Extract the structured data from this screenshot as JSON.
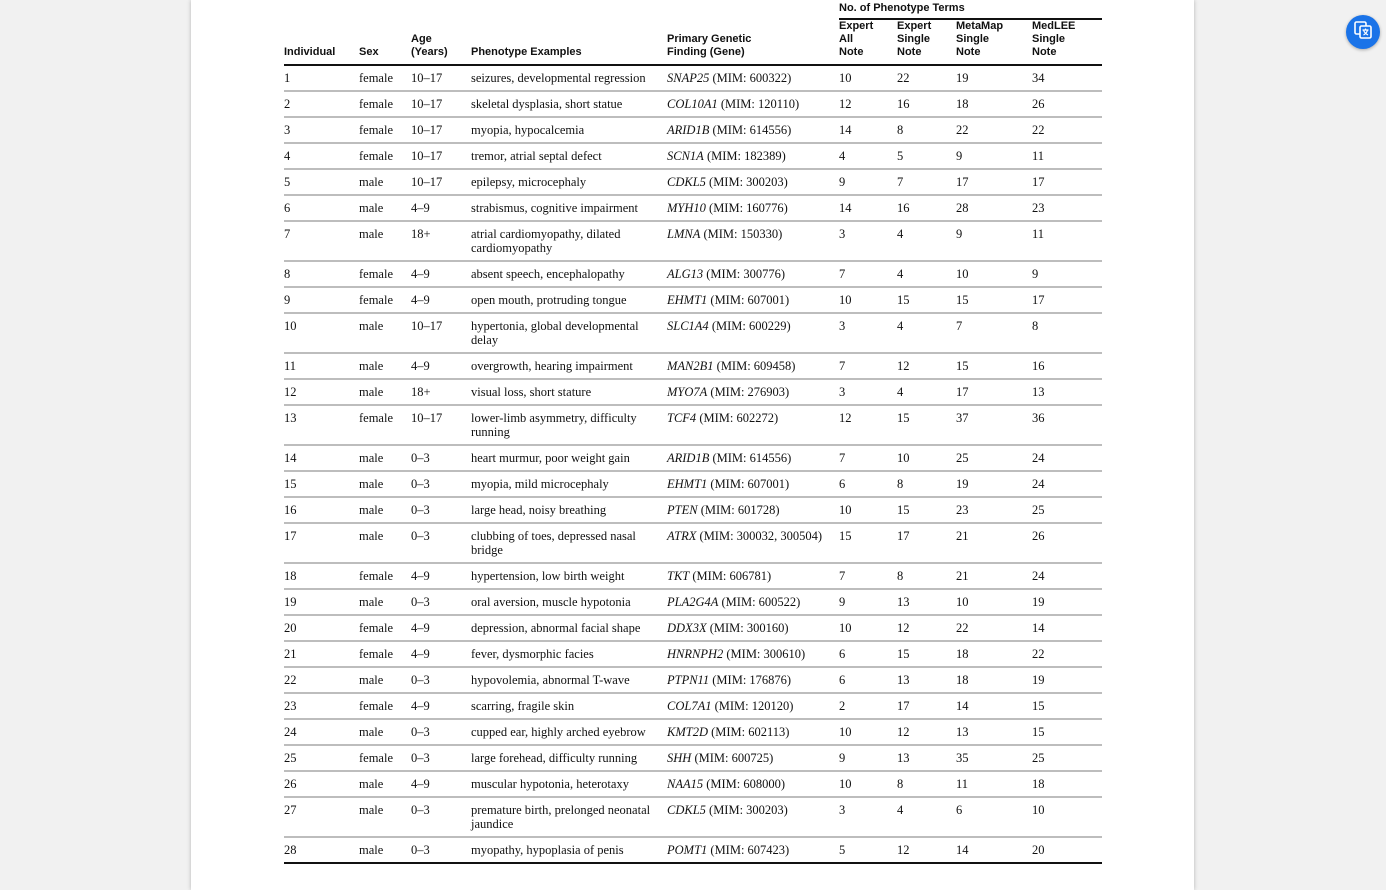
{
  "table": {
    "group_header": "No. of Phenotype Terms",
    "columns": {
      "individual": "Individual",
      "sex": "Sex",
      "age_1": "Age",
      "age_2": "(Years)",
      "phenotype": "Phenotype Examples",
      "finding_1": "Primary Genetic",
      "finding_2": "Finding (Gene)",
      "expert_all_1": "Expert",
      "expert_all_2": "All",
      "expert_all_3": "Note",
      "expert_single_1": "Expert",
      "expert_single_2": "Single",
      "expert_single_3": "Note",
      "metamap_1": "MetaMap",
      "metamap_2": "Single",
      "metamap_3": "Note",
      "medlee_1": "MedLEE",
      "medlee_2": "Single",
      "medlee_3": "Note"
    },
    "rows": [
      {
        "id": "1",
        "sex": "female",
        "age": "10–17",
        "phenotype": "seizures, developmental regression",
        "gene": "SNAP25",
        "mim": " (MIM: 600322)",
        "ea": "10",
        "es": "22",
        "mm": "19",
        "ml": "34"
      },
      {
        "id": "2",
        "sex": "female",
        "age": "10–17",
        "phenotype": "skeletal dysplasia, short statue",
        "gene": "COL10A1",
        "mim": " (MIM: 120110)",
        "ea": "12",
        "es": "16",
        "mm": "18",
        "ml": "26"
      },
      {
        "id": "3",
        "sex": "female",
        "age": "10–17",
        "phenotype": "myopia, hypocalcemia",
        "gene": "ARID1B",
        "mim": " (MIM: 614556)",
        "ea": "14",
        "es": "8",
        "mm": "22",
        "ml": "22"
      },
      {
        "id": "4",
        "sex": "female",
        "age": "10–17",
        "phenotype": "tremor, atrial septal defect",
        "gene": "SCN1A",
        "mim": " (MIM: 182389)",
        "ea": "4",
        "es": "5",
        "mm": "9",
        "ml": "11"
      },
      {
        "id": "5",
        "sex": "male",
        "age": "10–17",
        "phenotype": "epilepsy, microcephaly",
        "gene": "CDKL5",
        "mim": " (MIM: 300203)",
        "ea": "9",
        "es": "7",
        "mm": "17",
        "ml": "17"
      },
      {
        "id": "6",
        "sex": "male",
        "age": "4–9",
        "phenotype": "strabismus, cognitive impairment",
        "gene": "MYH10",
        "mim": " (MIM: 160776)",
        "ea": "14",
        "es": "16",
        "mm": "28",
        "ml": "23"
      },
      {
        "id": "7",
        "sex": "male",
        "age": "18+",
        "phenotype": "atrial cardiomyopathy, dilated cardiomyopathy",
        "gene": "LMNA",
        "mim": " (MIM: 150330)",
        "ea": "3",
        "es": "4",
        "mm": "9",
        "ml": "11"
      },
      {
        "id": "8",
        "sex": "female",
        "age": "4–9",
        "phenotype": "absent speech, encephalopathy",
        "gene": "ALG13",
        "mim": " (MIM: 300776)",
        "ea": "7",
        "es": "4",
        "mm": "10",
        "ml": "9"
      },
      {
        "id": "9",
        "sex": "female",
        "age": "4–9",
        "phenotype": "open mouth, protruding tongue",
        "gene": "EHMT1",
        "mim": " (MIM: 607001)",
        "ea": "10",
        "es": "15",
        "mm": "15",
        "ml": "17"
      },
      {
        "id": "10",
        "sex": "male",
        "age": "10–17",
        "phenotype": "hypertonia, global developmental delay",
        "gene": "SLC1A4",
        "mim": " (MIM: 600229)",
        "ea": "3",
        "es": "4",
        "mm": "7",
        "ml": "8"
      },
      {
        "id": "11",
        "sex": "male",
        "age": "4–9",
        "phenotype": "overgrowth, hearing impairment",
        "gene": "MAN2B1",
        "mim": " (MIM: 609458)",
        "ea": "7",
        "es": "12",
        "mm": "15",
        "ml": "16"
      },
      {
        "id": "12",
        "sex": "male",
        "age": "18+",
        "phenotype": "visual loss, short stature",
        "gene": "MYO7A",
        "mim": " (MIM: 276903)",
        "ea": "3",
        "es": "4",
        "mm": "17",
        "ml": "13"
      },
      {
        "id": "13",
        "sex": "female",
        "age": "10–17",
        "phenotype": "lower-limb asymmetry, difficulty running",
        "gene": "TCF4",
        "mim": " (MIM: 602272)",
        "ea": "12",
        "es": "15",
        "mm": "37",
        "ml": "36"
      },
      {
        "id": "14",
        "sex": "male",
        "age": "0–3",
        "phenotype": "heart murmur, poor weight gain",
        "gene": "ARID1B",
        "mim": " (MIM: 614556)",
        "ea": "7",
        "es": "10",
        "mm": "25",
        "ml": "24"
      },
      {
        "id": "15",
        "sex": "male",
        "age": "0–3",
        "phenotype": "myopia, mild microcephaly",
        "gene": "EHMT1",
        "mim": " (MIM: 607001)",
        "ea": "6",
        "es": "8",
        "mm": "19",
        "ml": "24"
      },
      {
        "id": "16",
        "sex": "male",
        "age": "0–3",
        "phenotype": "large head, noisy breathing",
        "gene": "PTEN",
        "mim": " (MIM: 601728)",
        "ea": "10",
        "es": "15",
        "mm": "23",
        "ml": "25"
      },
      {
        "id": "17",
        "sex": "male",
        "age": "0–3",
        "phenotype": "clubbing of toes, depressed nasal bridge",
        "gene": "ATRX",
        "mim": " (MIM: 300032, 300504)",
        "ea": "15",
        "es": "17",
        "mm": "21",
        "ml": "26"
      },
      {
        "id": "18",
        "sex": "female",
        "age": "4–9",
        "phenotype": "hypertension, low birth weight",
        "gene": "TKT",
        "mim": " (MIM: 606781)",
        "ea": "7",
        "es": "8",
        "mm": "21",
        "ml": "24"
      },
      {
        "id": "19",
        "sex": "male",
        "age": "0–3",
        "phenotype": "oral aversion, muscle hypotonia",
        "gene": "PLA2G4A",
        "mim": " (MIM: 600522)",
        "ea": "9",
        "es": "13",
        "mm": "10",
        "ml": "19"
      },
      {
        "id": "20",
        "sex": "female",
        "age": "4–9",
        "phenotype": "depression, abnormal facial shape",
        "gene": "DDX3X",
        "mim": " (MIM: 300160)",
        "ea": "10",
        "es": "12",
        "mm": "22",
        "ml": "14"
      },
      {
        "id": "21",
        "sex": "female",
        "age": "4–9",
        "phenotype": "fever, dysmorphic facies",
        "gene": "HNRNPH2",
        "mim": " (MIM: 300610)",
        "ea": "6",
        "es": "15",
        "mm": "18",
        "ml": "22"
      },
      {
        "id": "22",
        "sex": "male",
        "age": "0–3",
        "phenotype": "hypovolemia, abnormal T-wave",
        "gene": "PTPN11",
        "mim": " (MIM: 176876)",
        "ea": "6",
        "es": "13",
        "mm": "18",
        "ml": "19"
      },
      {
        "id": "23",
        "sex": "female",
        "age": "4–9",
        "phenotype": "scarring, fragile skin",
        "gene": "COL7A1",
        "mim": " (MIM: 120120)",
        "ea": "2",
        "es": "17",
        "mm": "14",
        "ml": "15"
      },
      {
        "id": "24",
        "sex": "male",
        "age": "0–3",
        "phenotype": "cupped ear, highly arched eyebrow",
        "gene": "KMT2D",
        "mim": " (MIM: 602113)",
        "ea": "10",
        "es": "12",
        "mm": "13",
        "ml": "15"
      },
      {
        "id": "25",
        "sex": "female",
        "age": "0–3",
        "phenotype": "large forehead, difficulty running",
        "gene": "SHH",
        "mim": " (MIM: 600725)",
        "ea": "9",
        "es": "13",
        "mm": "35",
        "ml": "25"
      },
      {
        "id": "26",
        "sex": "male",
        "age": "4–9",
        "phenotype": "muscular hypotonia, heterotaxy",
        "gene": "NAA15",
        "mim": " (MIM: 608000)",
        "ea": "10",
        "es": "8",
        "mm": "11",
        "ml": "18"
      },
      {
        "id": "27",
        "sex": "male",
        "age": "0–3",
        "phenotype": "premature birth, prelonged neonatal jaundice",
        "gene": "CDKL5",
        "mim": " (MIM: 300203)",
        "ea": "3",
        "es": "4",
        "mm": "6",
        "ml": "10"
      },
      {
        "id": "28",
        "sex": "male",
        "age": "0–3",
        "phenotype": "myopathy, hypoplasia of penis",
        "gene": "POMT1",
        "mim": " (MIM: 607423)",
        "ea": "5",
        "es": "12",
        "mm": "14",
        "ml": "20"
      }
    ]
  },
  "floating_button": {
    "icon": "translate-page-icon",
    "color": "#1a73e8"
  }
}
